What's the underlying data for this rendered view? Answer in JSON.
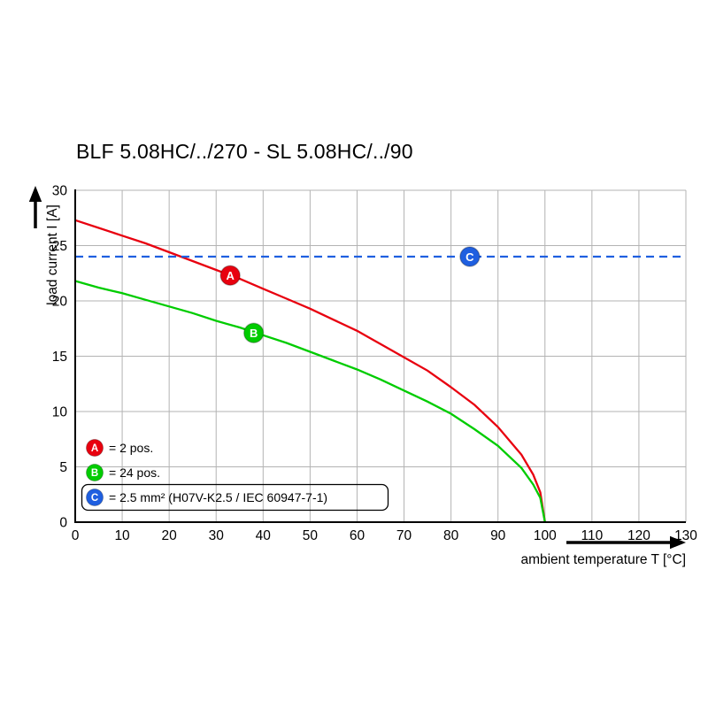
{
  "chart_data": {
    "type": "line",
    "title": "BLF 5.08HC/../270 - SL 5.08HC/../90",
    "xlabel": "ambient temperature T [°C]",
    "ylabel": "load current I [A]",
    "xlim": [
      0,
      130
    ],
    "ylim": [
      0,
      30
    ],
    "x_ticks": [
      0,
      10,
      20,
      30,
      40,
      50,
      60,
      70,
      80,
      90,
      100,
      110,
      120,
      130
    ],
    "y_ticks": [
      0,
      5,
      10,
      15,
      20,
      25,
      30
    ],
    "grid": true,
    "grid_color": "#b3b3b3",
    "axis_color": "#000000",
    "series": [
      {
        "name": "A",
        "color": "#e8000f",
        "style": "solid",
        "points": [
          [
            0,
            27.3
          ],
          [
            5,
            26.6
          ],
          [
            10,
            25.9
          ],
          [
            15,
            25.2
          ],
          [
            20,
            24.4
          ],
          [
            25,
            23.6
          ],
          [
            30,
            22.8
          ],
          [
            35,
            22.0
          ],
          [
            40,
            21.1
          ],
          [
            45,
            20.2
          ],
          [
            50,
            19.3
          ],
          [
            55,
            18.3
          ],
          [
            60,
            17.3
          ],
          [
            65,
            16.1
          ],
          [
            70,
            14.9
          ],
          [
            75,
            13.7
          ],
          [
            80,
            12.2
          ],
          [
            85,
            10.6
          ],
          [
            90,
            8.6
          ],
          [
            95,
            6.1
          ],
          [
            97.5,
            4.3
          ],
          [
            99,
            2.7
          ],
          [
            100,
            0
          ]
        ]
      },
      {
        "name": "B",
        "color": "#00cc00",
        "style": "solid",
        "points": [
          [
            0,
            21.8
          ],
          [
            5,
            21.2
          ],
          [
            10,
            20.7
          ],
          [
            15,
            20.1
          ],
          [
            20,
            19.5
          ],
          [
            25,
            18.9
          ],
          [
            30,
            18.2
          ],
          [
            35,
            17.6
          ],
          [
            40,
            16.9
          ],
          [
            45,
            16.2
          ],
          [
            50,
            15.4
          ],
          [
            55,
            14.6
          ],
          [
            60,
            13.8
          ],
          [
            65,
            12.9
          ],
          [
            70,
            11.9
          ],
          [
            75,
            10.9
          ],
          [
            80,
            9.8
          ],
          [
            85,
            8.4
          ],
          [
            90,
            6.9
          ],
          [
            95,
            4.9
          ],
          [
            97.5,
            3.4
          ],
          [
            99,
            2.2
          ],
          [
            100,
            0
          ]
        ]
      },
      {
        "name": "C",
        "color": "#1f5fe0",
        "style": "dashed",
        "points": [
          [
            0,
            24
          ],
          [
            130,
            24
          ]
        ]
      }
    ],
    "markers": [
      {
        "label": "A",
        "x": 33,
        "y": 22.3,
        "color": "#e8000f"
      },
      {
        "label": "B",
        "x": 38,
        "y": 17.1,
        "color": "#00cc00"
      },
      {
        "label": "C",
        "x": 84,
        "y": 24,
        "color": "#1f5fe0"
      }
    ],
    "legend": {
      "position": "bottom-left",
      "entries": [
        {
          "label": "A",
          "color": "#e8000f",
          "text": "= 2 pos.",
          "boxed": false
        },
        {
          "label": "B",
          "color": "#00cc00",
          "text": "= 24 pos.",
          "boxed": false
        },
        {
          "label": "C",
          "color": "#1f5fe0",
          "text": "= 2.5 mm² (H07V-K2.5 / IEC 60947-7-1)",
          "boxed": true
        }
      ]
    }
  }
}
